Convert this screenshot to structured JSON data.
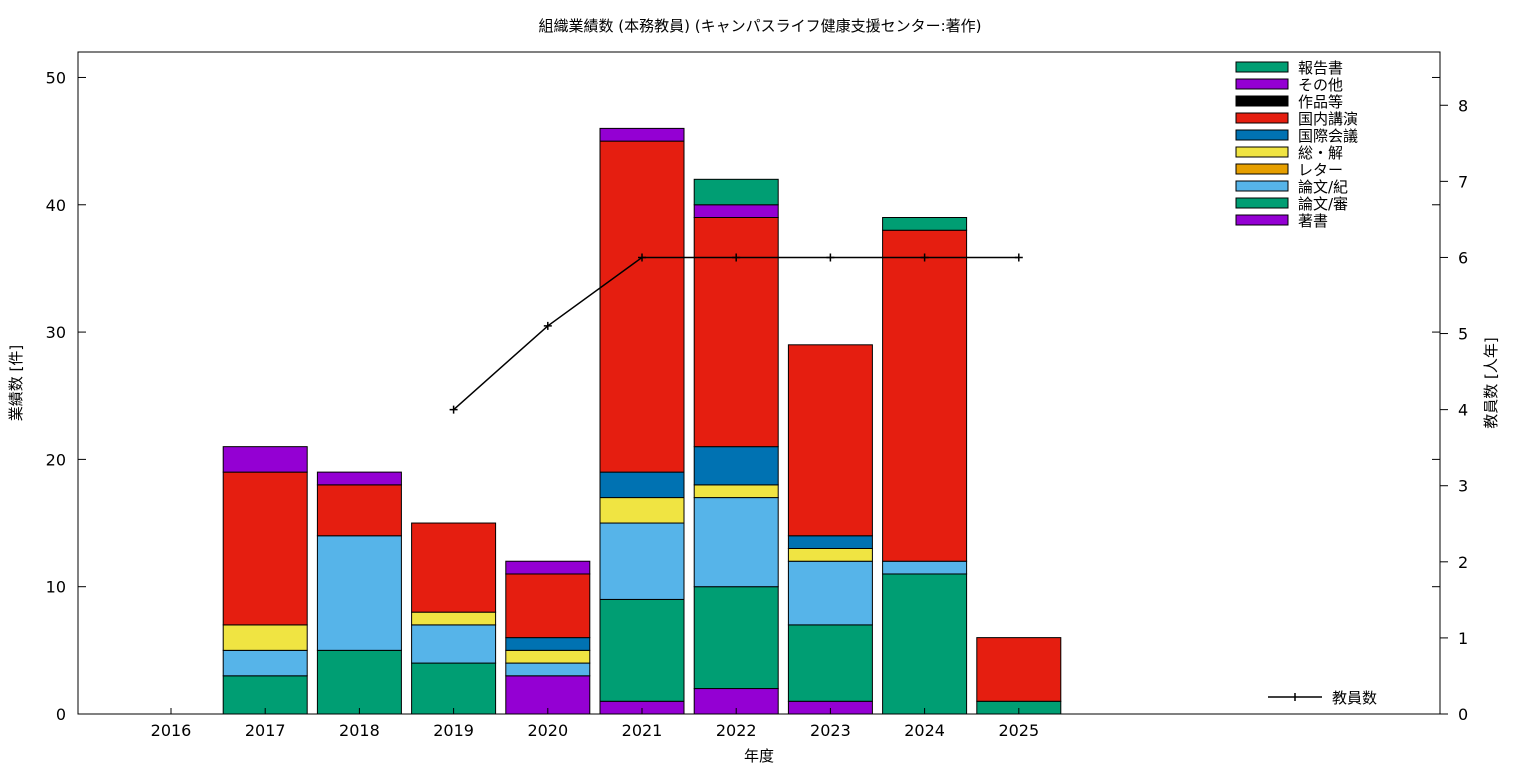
{
  "chart_data": {
    "type": "bar",
    "stacked": true,
    "title": "組織業績数 (本務教員) (キャンパスライフ健康支援センター:著作)",
    "xlabel": "年度",
    "ylabel": "業績数 [件]",
    "y2label": "教員数 [人年]",
    "categories": [
      "2016",
      "2017",
      "2018",
      "2019",
      "2020",
      "2021",
      "2022",
      "2023",
      "2024",
      "2025"
    ],
    "ylim": [
      0,
      52
    ],
    "y2lim": [
      0,
      8.7
    ],
    "yticks": [
      "0",
      "10",
      "20",
      "30",
      "40",
      "50"
    ],
    "y2ticks": [
      "0",
      "1",
      "2",
      "3",
      "4",
      "5",
      "6",
      "7",
      "8"
    ],
    "legend_position": "top-right",
    "series": [
      {
        "name": "著書",
        "color": "#9400d3",
        "values": [
          0,
          0,
          0,
          0,
          3,
          1,
          2,
          1,
          0,
          0
        ]
      },
      {
        "name": "論文/審",
        "color": "#009e73",
        "values": [
          0,
          3,
          5,
          4,
          0,
          8,
          8,
          6,
          11,
          1
        ]
      },
      {
        "name": "論文/紀",
        "color": "#56b4e9",
        "values": [
          0,
          2,
          9,
          3,
          1,
          6,
          7,
          5,
          1,
          0
        ]
      },
      {
        "name": "レター",
        "color": "#e69f00",
        "values": [
          0,
          0,
          0,
          0,
          0,
          0,
          0,
          0,
          0,
          0
        ]
      },
      {
        "name": "総・解",
        "color": "#f0e442",
        "values": [
          0,
          2,
          0,
          1,
          1,
          2,
          1,
          1,
          0,
          0
        ]
      },
      {
        "name": "国際会議",
        "color": "#0072b2",
        "values": [
          0,
          0,
          0,
          0,
          1,
          2,
          3,
          1,
          0,
          0
        ]
      },
      {
        "name": "国内講演",
        "color": "#e51e10",
        "values": [
          0,
          12,
          4,
          7,
          5,
          26,
          18,
          15,
          26,
          5
        ]
      },
      {
        "name": "作品等",
        "color": "#000000",
        "values": [
          0,
          0,
          0,
          0,
          0,
          0,
          0,
          0,
          0,
          0
        ]
      },
      {
        "name": "その他",
        "color": "#9400d3",
        "values": [
          0,
          2,
          1,
          0,
          1,
          1,
          1,
          0,
          0,
          0
        ]
      },
      {
        "name": "報告書",
        "color": "#009e73",
        "values": [
          0,
          0,
          0,
          0,
          0,
          0,
          2,
          0,
          1,
          0
        ]
      }
    ],
    "line": {
      "name": "教員数",
      "color": "#000000",
      "axis": "y2",
      "values": [
        null,
        null,
        null,
        4,
        5.1,
        6,
        6,
        6,
        6,
        6
      ]
    }
  }
}
